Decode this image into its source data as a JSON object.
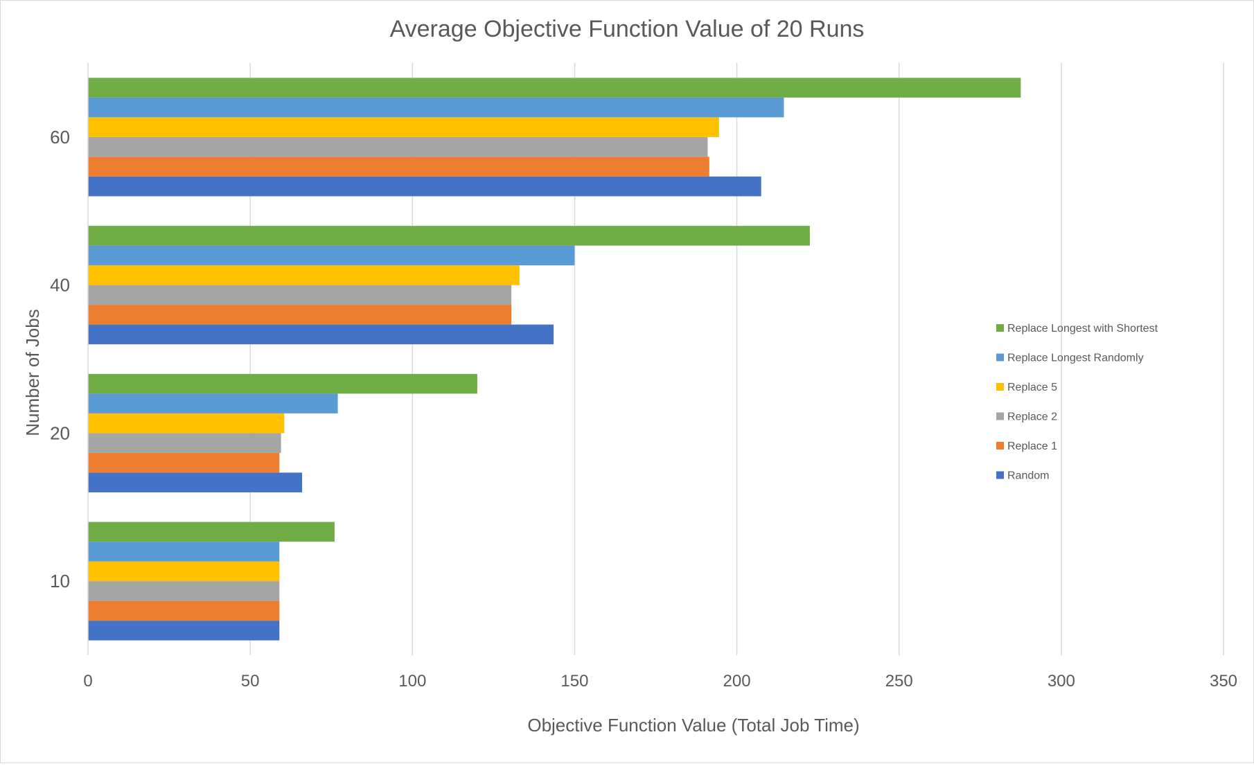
{
  "chart_data": {
    "type": "bar",
    "orientation": "horizontal",
    "title": "Average Objective Function Value of 20 Runs",
    "xlabel": "Objective Function Value (Total Job Time)",
    "ylabel": "Number of Jobs",
    "categories": [
      "10",
      "20",
      "40",
      "60"
    ],
    "xlim": [
      0,
      350
    ],
    "xticks": [
      "0",
      "50",
      "100",
      "150",
      "200",
      "250",
      "300",
      "350"
    ],
    "grid": true,
    "legend_position": "right",
    "series": [
      {
        "name": "Random",
        "color": "#4472C4",
        "values": [
          59,
          66,
          143.5,
          207.5
        ]
      },
      {
        "name": "Replace 1",
        "color": "#ED7D31",
        "values": [
          59,
          59,
          130.5,
          191.5
        ]
      },
      {
        "name": "Replace 2",
        "color": "#A5A5A5",
        "values": [
          59,
          59.5,
          130.5,
          191
        ]
      },
      {
        "name": "Replace 5",
        "color": "#FFC000",
        "values": [
          59,
          60.5,
          133,
          194.5
        ]
      },
      {
        "name": "Replace Longest Randomly",
        "color": "#5B9BD5",
        "values": [
          59,
          77,
          150,
          214.5
        ]
      },
      {
        "name": "Replace Longest with Shortest",
        "color": "#70AD47",
        "values": [
          76,
          120,
          222.5,
          287.5
        ]
      }
    ]
  }
}
